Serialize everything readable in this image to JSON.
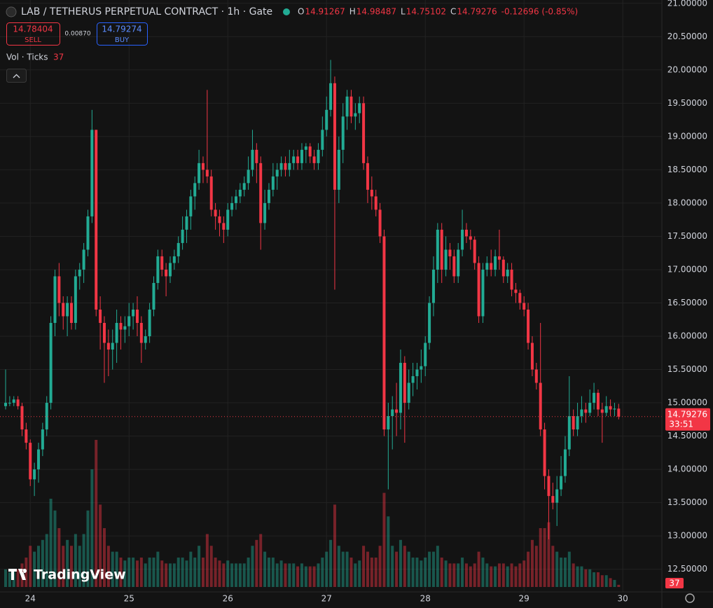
{
  "chart_data": {
    "type": "candlestick",
    "title": "LAB / TETHERUS PERPETUAL CONTRACT · 1h · Gate",
    "ohlc_labels": [
      "O",
      "H",
      "L",
      "C"
    ],
    "change_label": "-0.12696 (-0.85%)",
    "sell": {
      "price": "14.78404",
      "label": "SELL"
    },
    "spread": "0.00870",
    "buy": {
      "price": "14.79274",
      "label": "BUY"
    },
    "volume_label": "Vol · Ticks",
    "countdown": "33:51",
    "logo": "TradingView",
    "up_color": "#22ab94",
    "down_color": "#f23645",
    "grid": true,
    "ylim": [
      12.16,
      21.05
    ],
    "yticks": [
      {
        "value": 12.5,
        "label": "12.50000"
      },
      {
        "value": 13,
        "label": "13.00000"
      },
      {
        "value": 13.5,
        "label": "13.50000"
      },
      {
        "value": 14,
        "label": "14.00000"
      },
      {
        "value": 14.5,
        "label": "14.50000"
      },
      {
        "value": 15,
        "label": "15.00000"
      },
      {
        "value": 15.5,
        "label": "15.50000"
      },
      {
        "value": 16,
        "label": "16.00000"
      },
      {
        "value": 16.5,
        "label": "16.50000"
      },
      {
        "value": 17,
        "label": "17.00000"
      },
      {
        "value": 17.5,
        "label": "17.50000"
      },
      {
        "value": 18,
        "label": "18.00000"
      },
      {
        "value": 18.5,
        "label": "18.50000"
      },
      {
        "value": 19,
        "label": "19.00000"
      },
      {
        "value": 19.5,
        "label": "19.50000"
      },
      {
        "value": 20,
        "label": "20.00000"
      },
      {
        "value": 20.5,
        "label": "20.50000"
      },
      {
        "value": 21,
        "label": "21.00000"
      }
    ],
    "xlim": [
      -1.36,
      159.5
    ],
    "xticks": [
      {
        "value": 6,
        "label": "24"
      },
      {
        "value": 30,
        "label": "25"
      },
      {
        "value": 54,
        "label": "26"
      },
      {
        "value": 78,
        "label": "27"
      },
      {
        "value": 102,
        "label": "28"
      },
      {
        "value": 126,
        "label": "29"
      },
      {
        "value": 150,
        "label": "30"
      }
    ],
    "candles": [
      [
        14.95,
        15.5,
        14.9,
        15.0,
        300
      ],
      [
        15.0,
        15.1,
        14.95,
        15.0,
        250
      ],
      [
        15.0,
        15.1,
        14.95,
        15.05,
        280
      ],
      [
        15.05,
        15.1,
        14.9,
        14.95,
        300
      ],
      [
        14.95,
        15.0,
        14.5,
        14.6,
        400
      ],
      [
        14.6,
        14.7,
        14.3,
        14.4,
        500
      ],
      [
        14.4,
        14.45,
        13.75,
        13.85,
        700
      ],
      [
        13.85,
        14.1,
        13.6,
        14.0,
        600
      ],
      [
        14.0,
        14.4,
        13.8,
        14.3,
        700
      ],
      [
        14.3,
        14.7,
        14.2,
        14.6,
        800
      ],
      [
        14.6,
        15.1,
        14.5,
        15.0,
        900
      ],
      [
        15.0,
        16.3,
        14.9,
        16.2,
        1500
      ],
      [
        16.2,
        17.0,
        16.0,
        16.9,
        1300
      ],
      [
        16.9,
        17.1,
        16.3,
        16.5,
        1000
      ],
      [
        16.5,
        16.6,
        16.1,
        16.3,
        700
      ],
      [
        16.3,
        16.6,
        16.0,
        16.5,
        800
      ],
      [
        16.5,
        16.6,
        16.1,
        16.2,
        700
      ],
      [
        16.2,
        17.0,
        16.1,
        16.9,
        900
      ],
      [
        16.9,
        17.1,
        16.7,
        17.0,
        700
      ],
      [
        17.0,
        17.4,
        16.8,
        17.3,
        900
      ],
      [
        17.3,
        17.9,
        17.2,
        17.8,
        1300
      ],
      [
        17.8,
        19.4,
        17.7,
        19.1,
        2000
      ],
      [
        19.1,
        19.1,
        16.3,
        16.4,
        2500
      ],
      [
        16.4,
        16.6,
        15.8,
        16.2,
        1400
      ],
      [
        16.2,
        16.3,
        15.3,
        15.9,
        1000
      ],
      [
        15.9,
        16.1,
        15.4,
        15.8,
        700
      ],
      [
        15.8,
        16.1,
        15.5,
        15.9,
        600
      ],
      [
        15.9,
        16.4,
        15.6,
        16.2,
        600
      ],
      [
        16.2,
        16.3,
        15.8,
        16.1,
        500
      ],
      [
        16.1,
        16.3,
        15.9,
        16.15,
        450
      ],
      [
        16.15,
        16.5,
        16.0,
        16.3,
        500
      ],
      [
        16.3,
        16.5,
        16.1,
        16.4,
        500
      ],
      [
        16.4,
        16.6,
        16.0,
        16.2,
        450
      ],
      [
        16.2,
        16.3,
        15.6,
        15.9,
        500
      ],
      [
        15.9,
        16.1,
        15.8,
        16.0,
        400
      ],
      [
        16.0,
        16.5,
        15.9,
        16.4,
        500
      ],
      [
        16.4,
        16.9,
        16.3,
        16.8,
        500
      ],
      [
        16.8,
        17.3,
        16.7,
        17.2,
        600
      ],
      [
        17.2,
        17.3,
        16.9,
        17.0,
        450
      ],
      [
        17.0,
        17.1,
        16.6,
        16.9,
        400
      ],
      [
        16.9,
        17.2,
        16.8,
        17.1,
        400
      ],
      [
        17.1,
        17.3,
        17.0,
        17.2,
        400
      ],
      [
        17.2,
        17.5,
        17.1,
        17.4,
        500
      ],
      [
        17.4,
        17.8,
        17.3,
        17.6,
        500
      ],
      [
        17.6,
        17.9,
        17.4,
        17.8,
        450
      ],
      [
        17.8,
        18.2,
        17.6,
        18.1,
        600
      ],
      [
        18.1,
        18.4,
        17.9,
        18.3,
        500
      ],
      [
        18.3,
        18.8,
        18.2,
        18.6,
        700
      ],
      [
        18.6,
        18.7,
        18.3,
        18.5,
        500
      ],
      [
        18.5,
        19.7,
        18.3,
        18.4,
        900
      ],
      [
        18.4,
        18.5,
        17.8,
        17.9,
        700
      ],
      [
        17.9,
        18.0,
        17.6,
        17.8,
        500
      ],
      [
        17.8,
        17.9,
        17.5,
        17.7,
        450
      ],
      [
        17.7,
        17.8,
        17.4,
        17.6,
        400
      ],
      [
        17.6,
        18.0,
        17.5,
        17.9,
        450
      ],
      [
        17.9,
        18.1,
        17.8,
        18.0,
        400
      ],
      [
        18.0,
        18.2,
        17.9,
        18.1,
        400
      ],
      [
        18.1,
        18.3,
        18.0,
        18.2,
        400
      ],
      [
        18.2,
        18.4,
        18.1,
        18.3,
        400
      ],
      [
        18.3,
        18.7,
        18.2,
        18.5,
        500
      ],
      [
        18.5,
        19.1,
        18.4,
        18.8,
        700
      ],
      [
        18.8,
        18.9,
        18.3,
        18.6,
        800
      ],
      [
        18.6,
        18.7,
        17.3,
        17.7,
        900
      ],
      [
        17.7,
        18.2,
        17.6,
        18.0,
        600
      ],
      [
        18.0,
        18.3,
        17.9,
        18.2,
        500
      ],
      [
        18.2,
        18.6,
        18.1,
        18.4,
        500
      ],
      [
        18.4,
        18.6,
        18.2,
        18.5,
        400
      ],
      [
        18.5,
        18.7,
        18.4,
        18.6,
        450
      ],
      [
        18.6,
        18.7,
        18.4,
        18.5,
        400
      ],
      [
        18.5,
        18.8,
        18.4,
        18.6,
        400
      ],
      [
        18.6,
        18.8,
        18.5,
        18.7,
        400
      ],
      [
        18.7,
        18.8,
        18.5,
        18.6,
        350
      ],
      [
        18.6,
        18.9,
        18.5,
        18.8,
        400
      ],
      [
        18.8,
        18.9,
        18.6,
        18.85,
        350
      ],
      [
        18.85,
        18.9,
        18.6,
        18.7,
        350
      ],
      [
        18.7,
        18.8,
        18.5,
        18.6,
        350
      ],
      [
        18.6,
        18.9,
        18.5,
        18.8,
        400
      ],
      [
        18.8,
        19.3,
        18.7,
        19.1,
        500
      ],
      [
        19.1,
        19.6,
        19.0,
        19.4,
        600
      ],
      [
        19.4,
        20.15,
        19.3,
        19.8,
        800
      ],
      [
        19.8,
        19.9,
        16.7,
        18.2,
        1400
      ],
      [
        18.2,
        19.0,
        18.0,
        18.8,
        700
      ],
      [
        18.8,
        19.5,
        18.6,
        19.3,
        600
      ],
      [
        19.3,
        19.7,
        19.1,
        19.6,
        600
      ],
      [
        19.6,
        19.7,
        19.2,
        19.3,
        500
      ],
      [
        19.3,
        19.5,
        19.1,
        19.35,
        400
      ],
      [
        19.35,
        19.6,
        19.2,
        19.5,
        450
      ],
      [
        19.5,
        19.6,
        18.5,
        18.6,
        700
      ],
      [
        18.6,
        18.7,
        18.0,
        18.2,
        600
      ],
      [
        18.2,
        18.4,
        17.9,
        18.1,
        500
      ],
      [
        18.1,
        18.2,
        17.8,
        17.9,
        500
      ],
      [
        17.9,
        18.0,
        17.4,
        17.5,
        700
      ],
      [
        17.5,
        17.6,
        14.5,
        14.6,
        1600
      ],
      [
        14.6,
        15.0,
        13.7,
        14.8,
        1200
      ],
      [
        14.8,
        15.1,
        14.3,
        14.9,
        700
      ],
      [
        14.9,
        15.3,
        14.5,
        14.85,
        600
      ],
      [
        14.85,
        15.8,
        14.6,
        15.6,
        800
      ],
      [
        15.6,
        15.7,
        14.4,
        15.0,
        700
      ],
      [
        15.0,
        15.5,
        14.9,
        15.3,
        600
      ],
      [
        15.3,
        15.6,
        15.1,
        15.4,
        500
      ],
      [
        15.4,
        15.6,
        15.2,
        15.5,
        500
      ],
      [
        15.5,
        15.8,
        15.3,
        15.55,
        450
      ],
      [
        15.55,
        16.0,
        15.4,
        15.9,
        500
      ],
      [
        15.9,
        16.6,
        15.8,
        16.5,
        600
      ],
      [
        16.5,
        17.2,
        16.3,
        17.0,
        600
      ],
      [
        17.0,
        17.7,
        16.8,
        17.6,
        700
      ],
      [
        17.6,
        17.7,
        16.8,
        17.0,
        500
      ],
      [
        17.0,
        17.5,
        16.9,
        17.3,
        450
      ],
      [
        17.3,
        17.4,
        17.0,
        17.2,
        400
      ],
      [
        17.2,
        17.3,
        16.8,
        16.9,
        400
      ],
      [
        16.9,
        17.4,
        16.8,
        17.3,
        400
      ],
      [
        17.3,
        17.9,
        17.2,
        17.6,
        500
      ],
      [
        17.6,
        17.7,
        17.4,
        17.5,
        400
      ],
      [
        17.5,
        17.6,
        17.3,
        17.45,
        350
      ],
      [
        17.45,
        17.5,
        17.0,
        17.1,
        400
      ],
      [
        17.1,
        17.2,
        16.2,
        16.3,
        600
      ],
      [
        16.3,
        17.1,
        16.2,
        17.0,
        500
      ],
      [
        17.0,
        17.2,
        16.9,
        17.1,
        400
      ],
      [
        17.1,
        17.3,
        16.9,
        17.0,
        350
      ],
      [
        17.0,
        17.3,
        16.9,
        17.2,
        350
      ],
      [
        17.2,
        17.6,
        17.0,
        17.15,
        400
      ],
      [
        17.15,
        17.2,
        16.8,
        16.9,
        400
      ],
      [
        16.9,
        17.1,
        16.8,
        17.0,
        350
      ],
      [
        17.0,
        17.1,
        16.6,
        16.7,
        400
      ],
      [
        16.7,
        16.8,
        16.5,
        16.65,
        350
      ],
      [
        16.65,
        16.7,
        16.4,
        16.5,
        400
      ],
      [
        16.5,
        16.6,
        16.3,
        16.4,
        450
      ],
      [
        16.4,
        16.5,
        15.8,
        15.9,
        600
      ],
      [
        15.9,
        16.0,
        15.4,
        15.5,
        800
      ],
      [
        15.5,
        15.6,
        15.2,
        15.3,
        700
      ],
      [
        15.3,
        16.2,
        14.5,
        14.6,
        1000
      ],
      [
        14.6,
        14.7,
        13.7,
        13.9,
        1000
      ],
      [
        13.9,
        14.0,
        12.95,
        13.6,
        1100
      ],
      [
        13.6,
        13.8,
        13.4,
        13.5,
        700
      ],
      [
        13.5,
        13.9,
        13.15,
        13.7,
        600
      ],
      [
        13.7,
        14.2,
        13.6,
        13.9,
        500
      ],
      [
        13.9,
        14.5,
        13.8,
        14.3,
        500
      ],
      [
        14.3,
        15.4,
        14.2,
        14.8,
        600
      ],
      [
        14.8,
        14.9,
        14.5,
        14.6,
        400
      ],
      [
        14.6,
        15.0,
        14.5,
        14.8,
        350
      ],
      [
        14.8,
        15.1,
        14.7,
        14.9,
        350
      ],
      [
        14.9,
        15.0,
        14.7,
        14.85,
        300
      ],
      [
        14.85,
        15.2,
        14.8,
        15.0,
        300
      ],
      [
        15.0,
        15.3,
        14.9,
        15.15,
        250
      ],
      [
        15.15,
        15.2,
        14.8,
        14.9,
        250
      ],
      [
        14.9,
        15.0,
        14.4,
        14.85,
        200
      ],
      [
        14.85,
        15.1,
        14.8,
        14.95,
        200
      ],
      [
        14.95,
        15.05,
        14.8,
        14.9,
        150
      ],
      [
        14.9,
        15.0,
        14.8,
        14.91267,
        120
      ],
      [
        14.91267,
        14.98487,
        14.75102,
        14.79276,
        37
      ]
    ]
  }
}
